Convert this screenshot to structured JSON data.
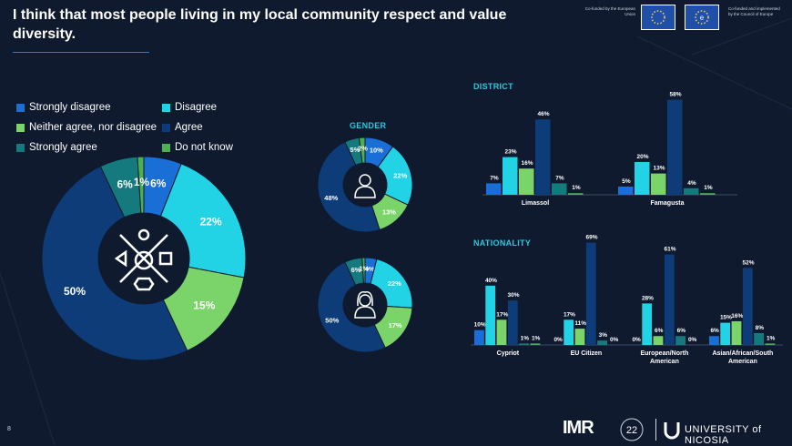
{
  "title": "I think that most people living in my local community respect and value diversity.",
  "colors": {
    "strongly_disagree": "#1a6fd6",
    "disagree": "#22d3e6",
    "neither": "#7bd46a",
    "agree": "#0d3c78",
    "strongly_agree": "#157a7e",
    "do_not_know": "#4caf50",
    "background": "#0f1a2e"
  },
  "legend": [
    {
      "label": "Strongly disagree",
      "color": "#1a6fd6"
    },
    {
      "label": "Disagree",
      "color": "#22d3e6"
    },
    {
      "label": "Neither agree, nor disagree",
      "color": "#7bd46a"
    },
    {
      "label": "Agree",
      "color": "#0d3c78"
    },
    {
      "label": "Strongly agree",
      "color": "#157a7e"
    },
    {
      "label": "Do not know",
      "color": "#4caf50"
    }
  ],
  "panels": {
    "gender": "GENDER",
    "district": "DISTRICT",
    "nationality": "NATIONALITY"
  },
  "footer": {
    "page_number": "8",
    "eu_text": "Co-funded by the European Union",
    "coe_text": "Co-funded and implemented by the Council of Europe",
    "imr": "IMR",
    "university": "UNIVERSITY of NICOSIA"
  },
  "chart_data": [
    {
      "type": "pie",
      "name": "overall",
      "labels": [
        "Strongly disagree",
        "Disagree",
        "Neither agree, nor disagree",
        "Agree",
        "Strongly agree",
        "Do not know"
      ],
      "values": [
        6,
        22,
        15,
        50,
        6,
        1
      ],
      "value_labels": [
        "6%",
        "22%",
        "15%",
        "50%",
        "6%",
        "1%"
      ]
    },
    {
      "type": "pie",
      "name": "gender-male",
      "labels": [
        "Strongly disagree",
        "Disagree",
        "Neither agree, nor disagree",
        "Agree",
        "Strongly agree",
        "Do not know"
      ],
      "values": [
        10,
        22,
        13,
        48,
        5,
        2
      ],
      "value_labels": [
        "10%",
        "22%",
        "13%",
        "48%",
        "5%",
        "2%"
      ]
    },
    {
      "type": "pie",
      "name": "gender-female",
      "labels": [
        "Strongly disagree",
        "Disagree",
        "Neither agree, nor disagree",
        "Agree",
        "Strongly agree",
        "Do not know"
      ],
      "values": [
        4,
        22,
        17,
        50,
        6,
        1
      ],
      "value_labels": [
        "4%",
        "22%",
        "17%",
        "50%",
        "6%",
        "1%"
      ]
    },
    {
      "type": "bar",
      "name": "district",
      "categories": [
        "Limassol",
        "Famagusta"
      ],
      "series": [
        {
          "name": "Strongly disagree",
          "values": [
            7,
            5
          ]
        },
        {
          "name": "Disagree",
          "values": [
            23,
            20
          ]
        },
        {
          "name": "Neither agree, nor disagree",
          "values": [
            16,
            13
          ]
        },
        {
          "name": "Agree",
          "values": [
            46,
            58
          ]
        },
        {
          "name": "Strongly agree",
          "values": [
            7,
            4
          ]
        },
        {
          "name": "Do not know",
          "values": [
            1,
            1
          ]
        }
      ],
      "value_labels": [
        [
          "7%",
          "23%",
          "16%",
          "46%",
          "7%",
          "1%"
        ],
        [
          "5%",
          "20%",
          "13%",
          "58%",
          "4%",
          "1%"
        ]
      ]
    },
    {
      "type": "bar",
      "name": "nationality",
      "categories": [
        "Cypriot",
        "EU Citizen",
        "European/North American",
        "Asian/African/South American"
      ],
      "series": [
        {
          "name": "Strongly disagree",
          "values": [
            10,
            0,
            0,
            6
          ]
        },
        {
          "name": "Disagree",
          "values": [
            40,
            17,
            28,
            15
          ]
        },
        {
          "name": "Neither agree, nor disagree",
          "values": [
            17,
            11,
            6,
            16
          ]
        },
        {
          "name": "Agree",
          "values": [
            30,
            69,
            61,
            52
          ]
        },
        {
          "name": "Strongly agree",
          "values": [
            1,
            3,
            6,
            8
          ]
        },
        {
          "name": "Do not know",
          "values": [
            1,
            0,
            0,
            1
          ]
        }
      ],
      "value_labels": [
        [
          "10%",
          "40%",
          "17%",
          "30%",
          "1%",
          "1%"
        ],
        [
          "0%",
          "17%",
          "11%",
          "69%",
          "3%",
          "0%"
        ],
        [
          "0%",
          "28%",
          "6%",
          "61%",
          "6%",
          "0%"
        ],
        [
          "6%",
          "15%",
          "16%",
          "52%",
          "8%",
          "1%"
        ]
      ]
    }
  ]
}
